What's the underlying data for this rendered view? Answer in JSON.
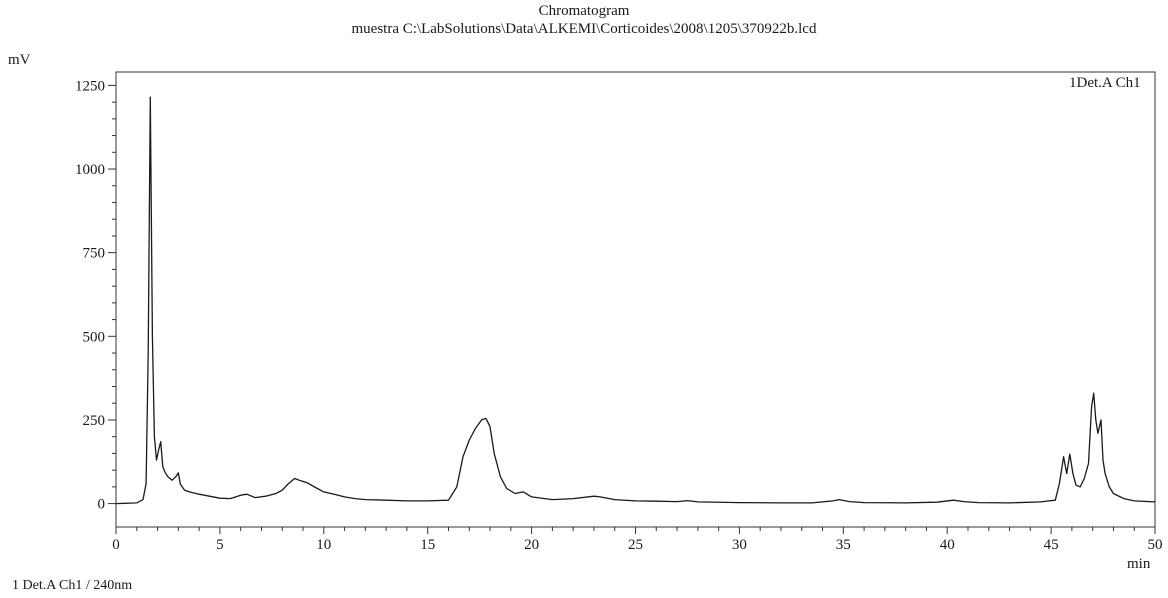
{
  "chart_data": {
    "type": "line",
    "title": "Chromatogram",
    "subtitle": "muestra C:\\LabSolutions\\Data\\ALKEMI\\Corticoides\\2008\\1205\\370922b.lcd",
    "xlabel": "min",
    "ylabel": "mV",
    "xlim": [
      0,
      50
    ],
    "ylim": [
      -70,
      1290
    ],
    "x_ticks": [
      0,
      5,
      10,
      15,
      20,
      25,
      30,
      35,
      40,
      45,
      50
    ],
    "y_ticks": [
      0,
      250,
      500,
      750,
      1000,
      1250
    ],
    "grid": false,
    "legend_position": "top-right",
    "series": [
      {
        "name": "1Det.A Ch1",
        "x": [
          0,
          1.0,
          1.3,
          1.45,
          1.55,
          1.65,
          1.75,
          1.85,
          1.95,
          2.05,
          2.15,
          2.25,
          2.35,
          2.5,
          2.7,
          2.9,
          3.0,
          3.1,
          3.3,
          3.6,
          4.0,
          4.5,
          5.0,
          5.5,
          6.0,
          6.3,
          6.7,
          7.2,
          7.7,
          8.0,
          8.3,
          8.6,
          8.9,
          9.2,
          9.6,
          10.0,
          10.5,
          11.0,
          11.5,
          12.0,
          13.0,
          14.0,
          15.0,
          16.0,
          16.4,
          16.7,
          17.0,
          17.3,
          17.6,
          17.8,
          18.0,
          18.2,
          18.5,
          18.8,
          19.2,
          19.6,
          20.0,
          21.0,
          22.0,
          23.0,
          23.3,
          24.0,
          25.0,
          26.0,
          27.0,
          27.5,
          28.0,
          30.0,
          32.0,
          33.5,
          34.5,
          34.8,
          35.3,
          36.0,
          38.0,
          39.5,
          40.3,
          40.8,
          41.5,
          43.0,
          44.5,
          45.2,
          45.4,
          45.6,
          45.75,
          45.9,
          46.05,
          46.2,
          46.4,
          46.6,
          46.8,
          46.95,
          47.05,
          47.15,
          47.25,
          47.4,
          47.5,
          47.6,
          47.8,
          48.0,
          48.5,
          49.0,
          50.0
        ],
        "values": [
          0,
          2,
          12,
          60,
          450,
          1215,
          500,
          200,
          130,
          160,
          185,
          110,
          95,
          80,
          70,
          82,
          92,
          58,
          40,
          34,
          28,
          22,
          16,
          15,
          25,
          28,
          18,
          22,
          30,
          40,
          60,
          75,
          68,
          62,
          48,
          35,
          28,
          20,
          15,
          12,
          10,
          8,
          8,
          10,
          50,
          140,
          190,
          225,
          250,
          255,
          230,
          150,
          80,
          45,
          30,
          35,
          20,
          12,
          15,
          22,
          20,
          12,
          8,
          7,
          6,
          9,
          5,
          3,
          2,
          2,
          8,
          12,
          6,
          3,
          2,
          4,
          10,
          6,
          3,
          2,
          5,
          10,
          60,
          140,
          90,
          148,
          90,
          55,
          50,
          75,
          120,
          290,
          330,
          250,
          210,
          250,
          130,
          90,
          50,
          30,
          15,
          8,
          5
        ]
      }
    ]
  },
  "footer_label": "1 Det.A Ch1 / 240nm"
}
